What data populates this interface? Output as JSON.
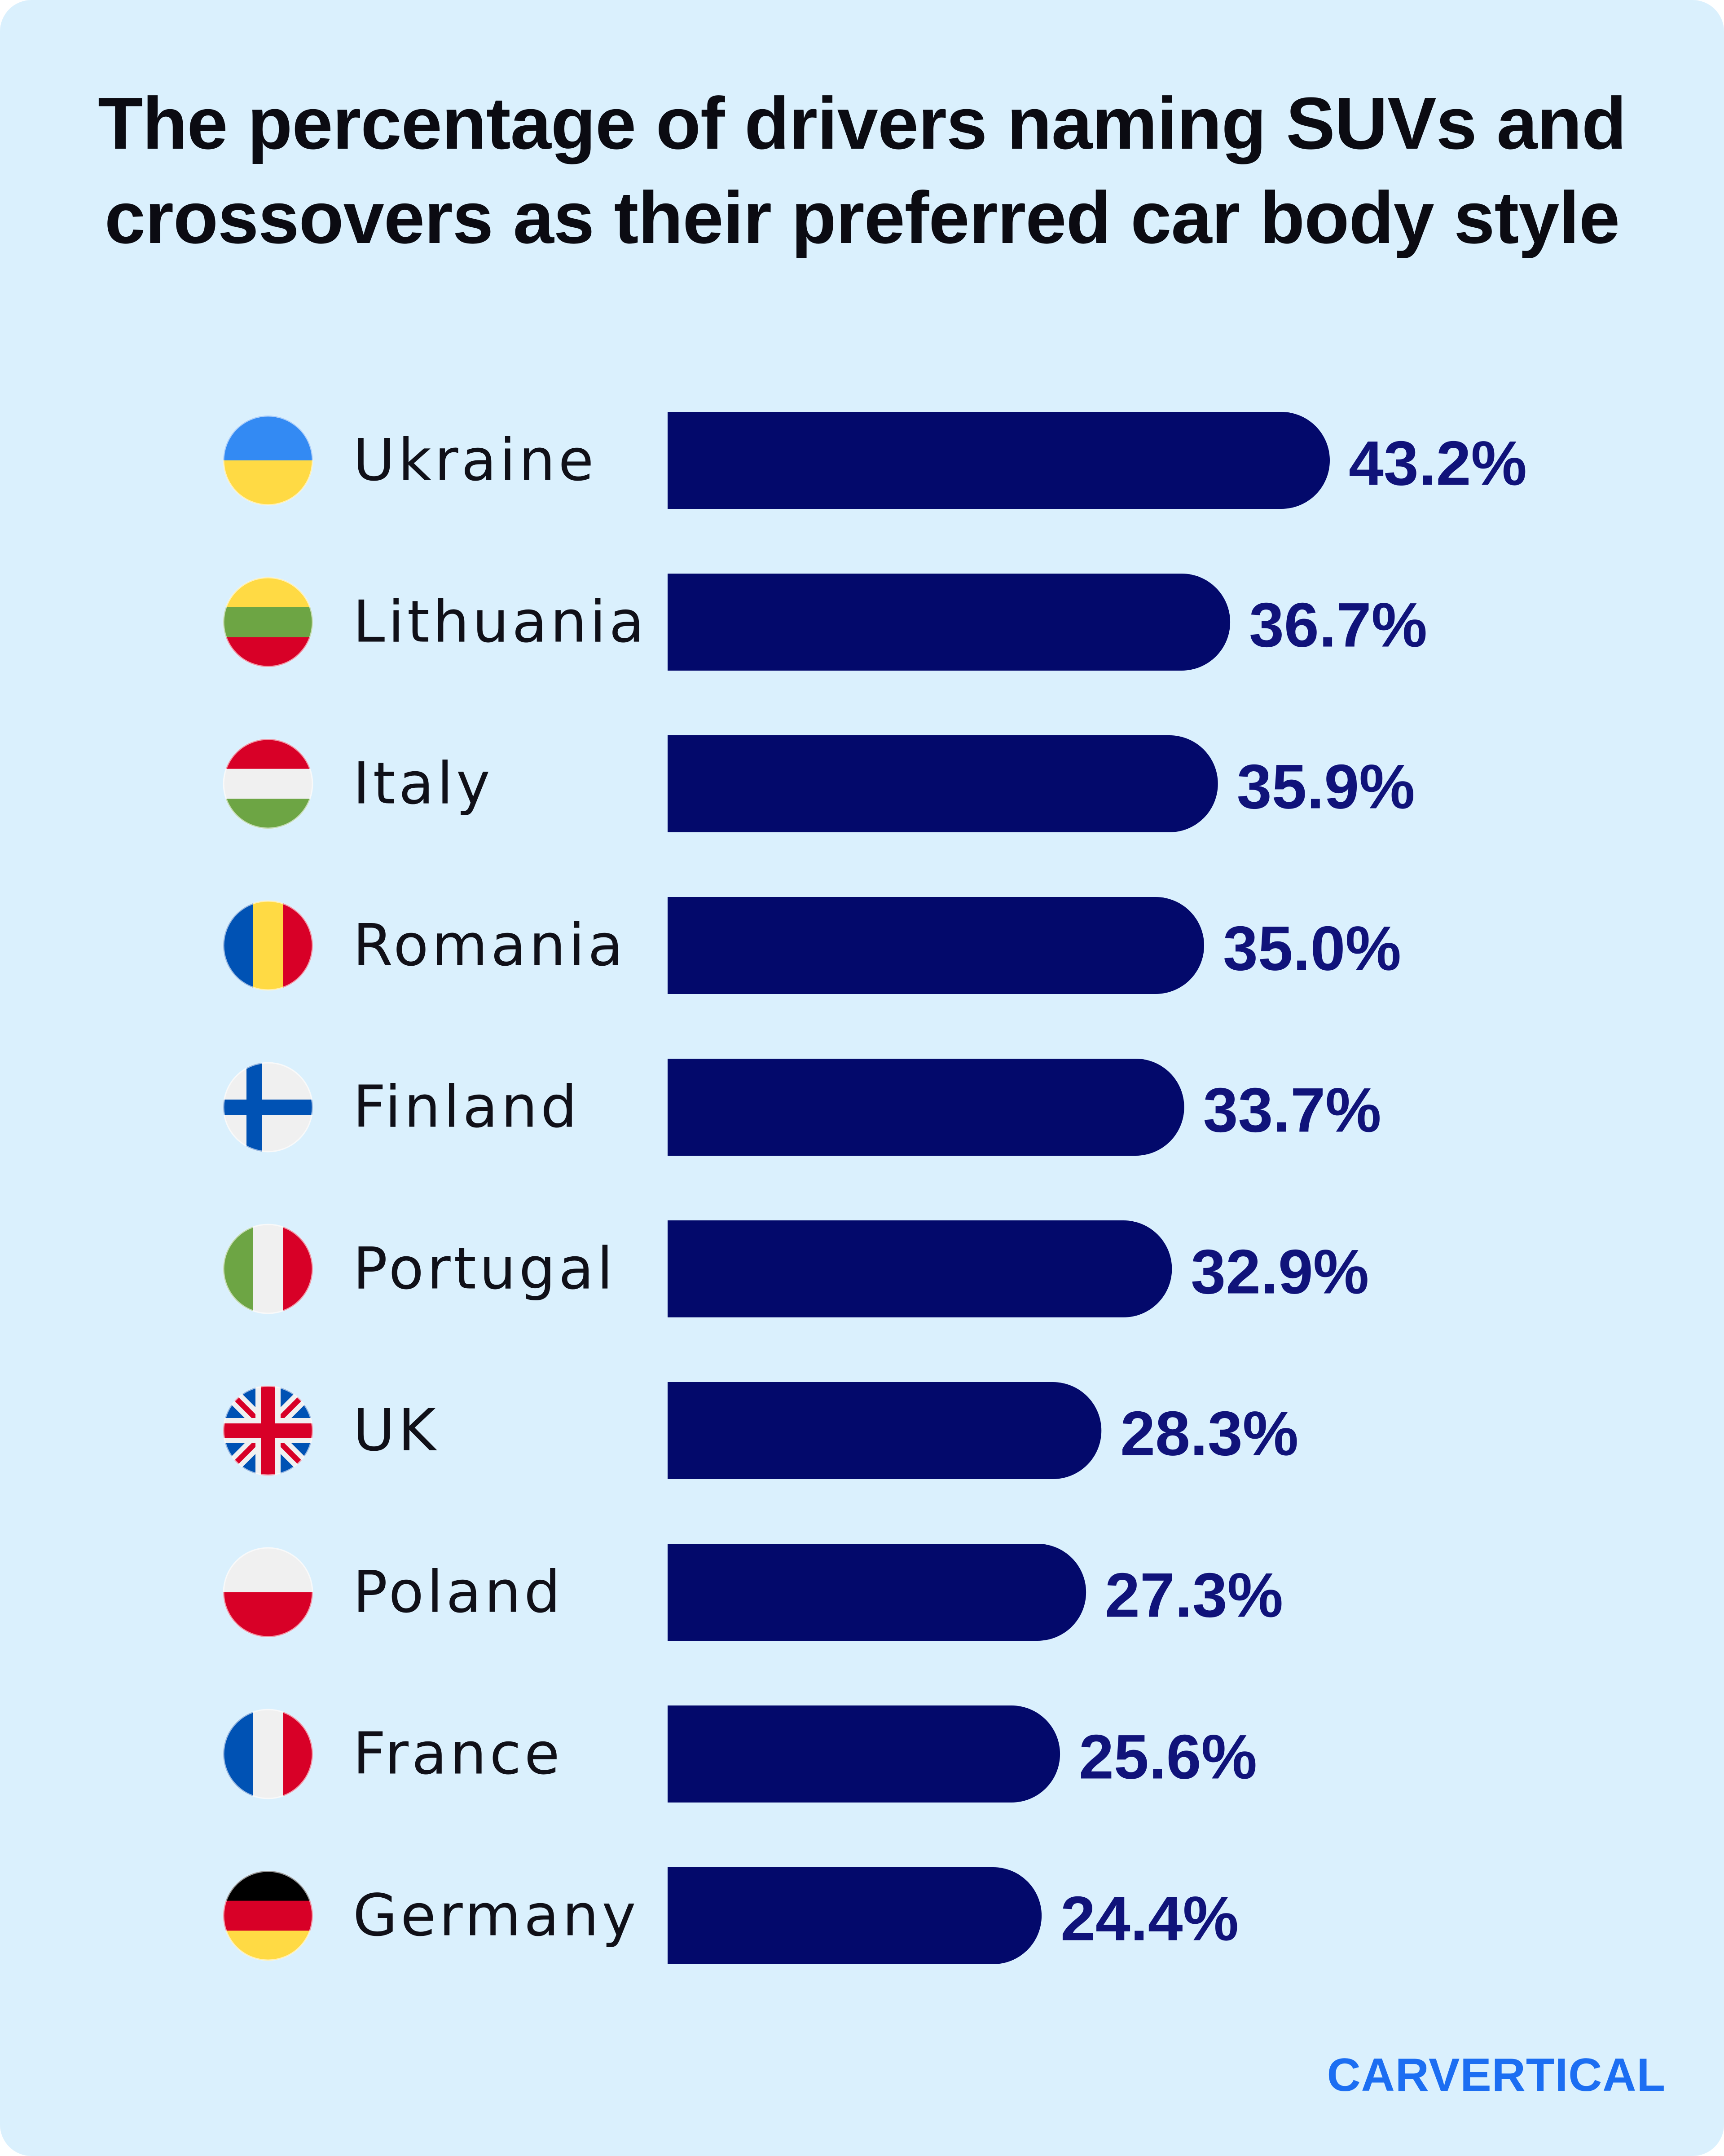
{
  "colors": {
    "background": "#daf0fd",
    "bar": "#03096b",
    "value_text": "#10137a",
    "label_text": "#101018",
    "brand": "#1c6ef2"
  },
  "brand": "CARVERTICAL",
  "chart_data": {
    "type": "bar",
    "orientation": "horizontal",
    "title": "The percentage of drivers naming SUVs and crossovers as their preferred car body style",
    "categories": [
      "Ukraine",
      "Lithuania",
      "Italy",
      "Romania",
      "Finland",
      "Portugal",
      "UK",
      "Poland",
      "France",
      "Germany"
    ],
    "values": [
      43.2,
      36.7,
      35.9,
      35.0,
      33.7,
      32.9,
      28.3,
      27.3,
      25.6,
      24.4
    ],
    "value_labels": [
      "43.2%",
      "36.7%",
      "35.9%",
      "35.0%",
      "33.7%",
      "32.9%",
      "28.3%",
      "27.3%",
      "25.6%",
      "24.4%"
    ],
    "flag_icons": [
      "ukraine-flag-icon",
      "lithuania-flag-icon",
      "italy-flag-icon",
      "romania-flag-icon",
      "finland-flag-icon",
      "portugal-flag-icon",
      "uk-flag-icon",
      "poland-flag-icon",
      "france-flag-icon",
      "germany-flag-icon"
    ],
    "xlim": [
      0,
      43.2
    ],
    "xlabel": "",
    "ylabel": "",
    "grid": false,
    "legend": "none"
  }
}
